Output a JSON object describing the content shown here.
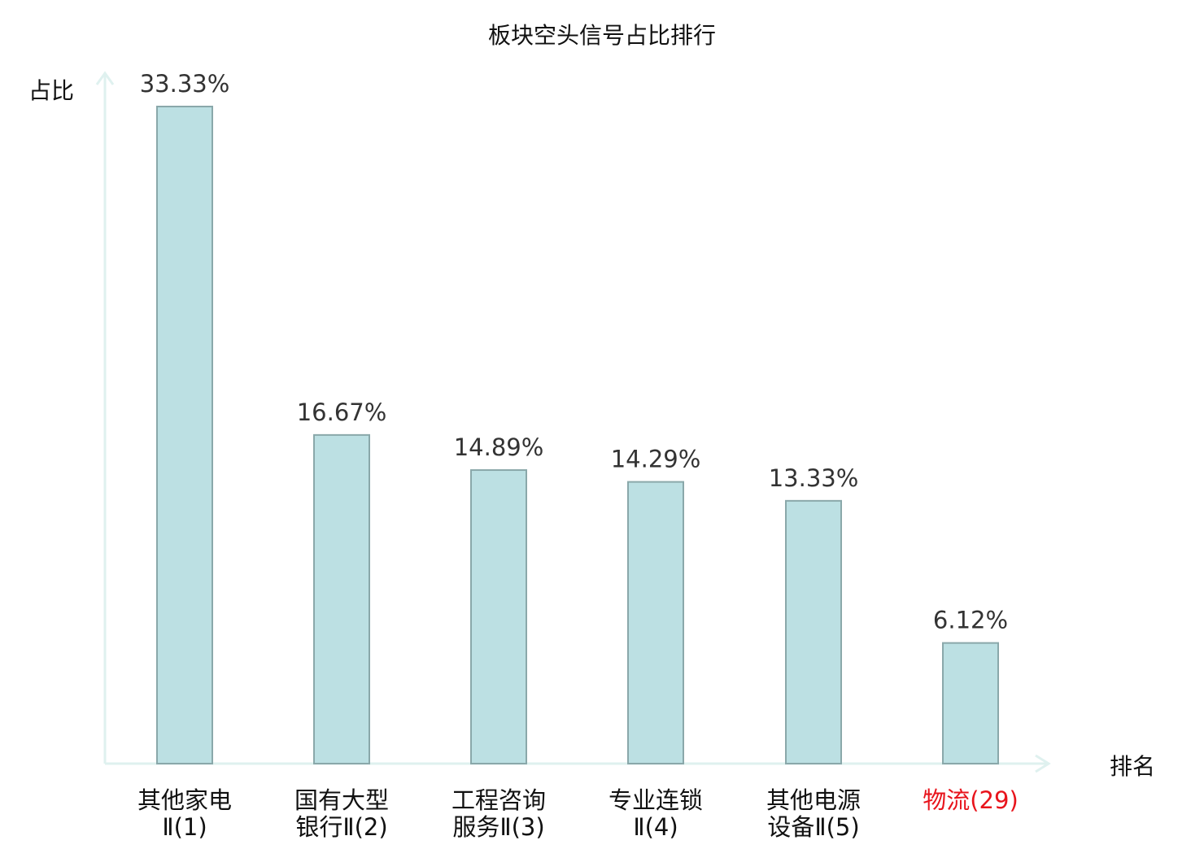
{
  "chart_data": {
    "type": "bar",
    "title": "板块空头信号占比排行",
    "ylabel": "占比",
    "xlabel": "排名",
    "ylim": [
      0,
      33.33
    ],
    "grid": false,
    "categories": [
      [
        "其他家电",
        "Ⅱ(1)"
      ],
      [
        "国有大型",
        "银行Ⅱ(2)"
      ],
      [
        "工程咨询",
        "服务Ⅱ(3)"
      ],
      [
        "专业连锁",
        "Ⅱ(4)"
      ],
      [
        "其他电源",
        "设备Ⅱ(5)"
      ],
      [
        "物流(29)"
      ]
    ],
    "values": [
      33.33,
      16.67,
      14.89,
      14.29,
      13.33,
      6.12
    ],
    "data_labels": [
      "33.33%",
      "16.67%",
      "14.89%",
      "14.29%",
      "13.33%",
      "6.12%"
    ],
    "highlight_index": 5,
    "colors": {
      "bar_fill": "#bce0e3",
      "bar_stroke": "#8aa8aa",
      "axis": "#dff1ef",
      "highlight_text": "#e8141c",
      "text": "#333333"
    }
  }
}
